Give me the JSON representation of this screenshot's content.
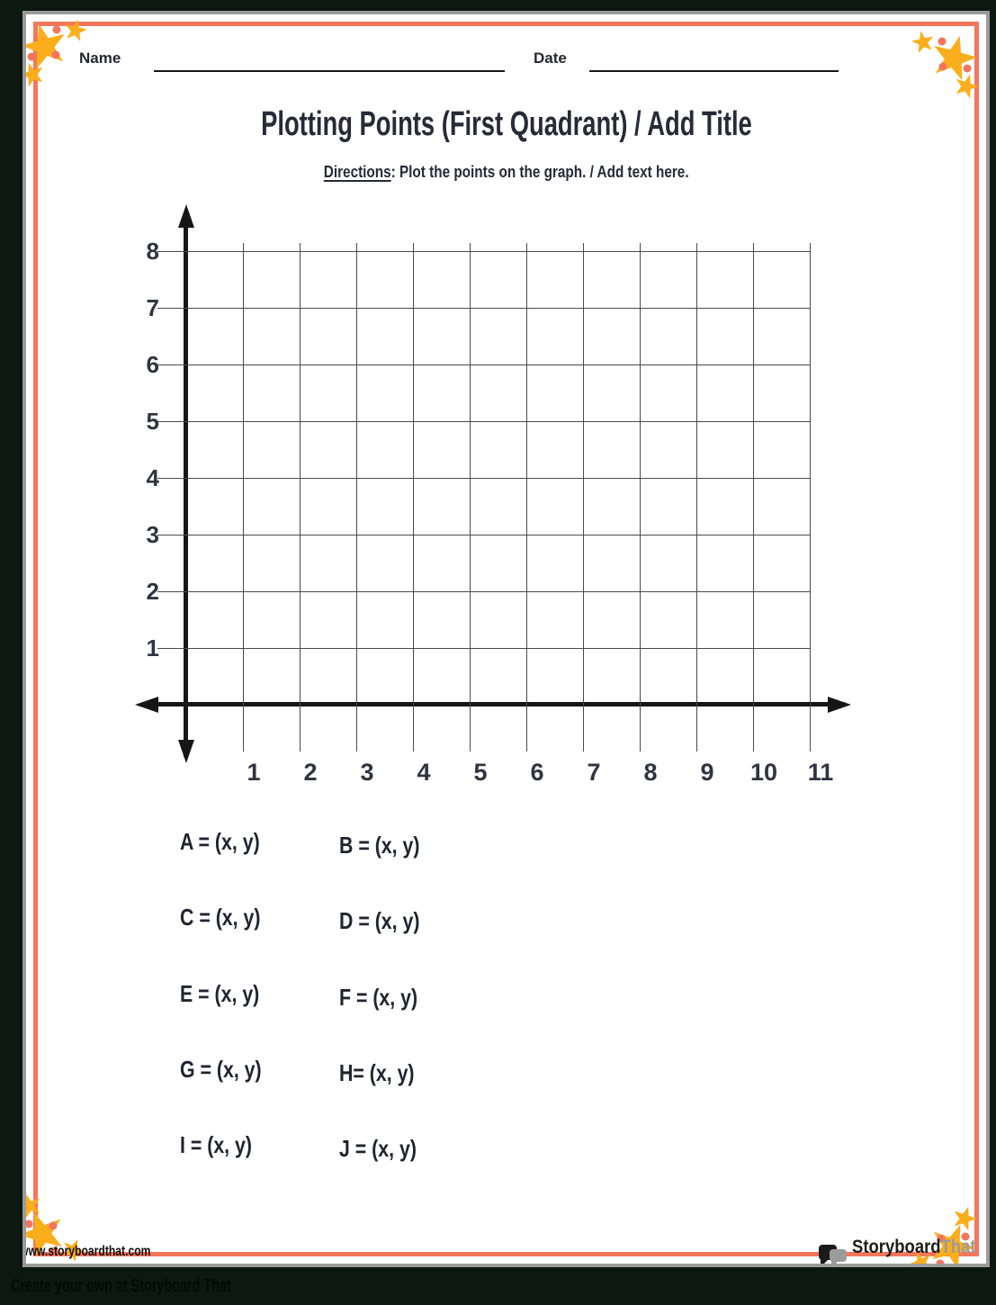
{
  "header": {
    "name_label": "Name",
    "date_label": "Date",
    "title": "Plotting Points (First Quadrant) / Add Title",
    "directions_label": "Directions",
    "directions_text": ": Plot the points on the graph. / Add text here."
  },
  "chart_data": {
    "type": "scatter",
    "title": "",
    "xlabel": "",
    "ylabel": "",
    "x_ticks": [
      "1",
      "2",
      "3",
      "4",
      "5",
      "6",
      "7",
      "8",
      "9",
      "10",
      "11"
    ],
    "y_ticks": [
      "1",
      "2",
      "3",
      "4",
      "5",
      "6",
      "7",
      "8"
    ],
    "xlim": [
      0,
      11.5
    ],
    "ylim": [
      0,
      8.6
    ],
    "grid": true,
    "legend": false,
    "series": []
  },
  "points": [
    "A = (x, y)",
    "B = (x, y)",
    "C = (x, y)",
    "D = (x, y)",
    "E = (x, y)",
    "F = (x, y)",
    "G = (x, y)",
    "H= (x, y)",
    "I = (x, y)",
    "J = (x, y)"
  ],
  "footer": {
    "url": "www.storyboardthat.com",
    "logo_part1": "Storyboard",
    "logo_part2": "That",
    "bottom_text": "Create your own at Storyboard That"
  },
  "colors": {
    "border": "#f4765b",
    "star": "#fbae1c",
    "dot": "#f5745c",
    "page_bg": "#ffffff",
    "outer_bg": "#0d1811",
    "text": "#262b36",
    "grid_line": "#4a4a4a",
    "axis": "#161616",
    "logo_gray": "#9b9b9b"
  }
}
